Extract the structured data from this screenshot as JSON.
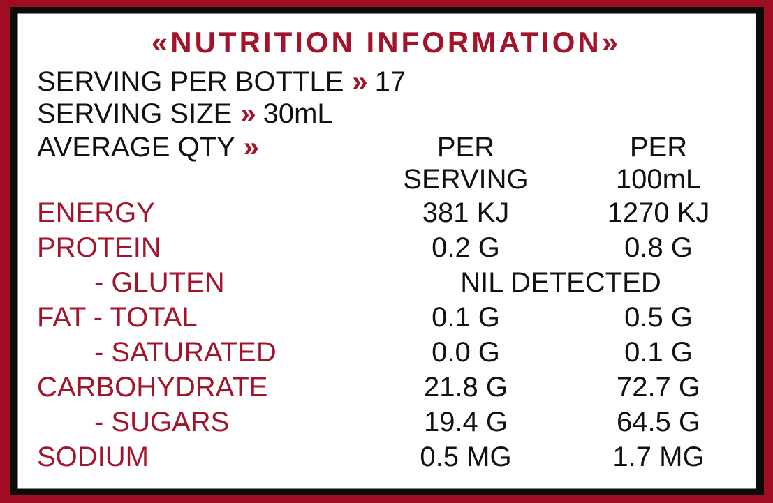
{
  "title": "«NUTRITION INFORMATION»",
  "info": [
    {
      "label": "SERVING PER BOTTLE",
      "arrow": "»",
      "value": "17"
    },
    {
      "label": "SERVING SIZE",
      "arrow": "»",
      "value": "30mL"
    },
    {
      "label": "AVERAGE QTY",
      "arrow": "»"
    }
  ],
  "columns": [
    [
      "PER",
      "SERVING"
    ],
    [
      "PER",
      "100mL"
    ]
  ],
  "rows": [
    {
      "name": "ENERGY",
      "per_serving": "381 KJ",
      "per_100ml": "1270 KJ"
    },
    {
      "name": "PROTEIN",
      "per_serving": "0.2 G",
      "per_100ml": "0.8 G"
    },
    {
      "name": "- GLUTEN",
      "both": "NIL DETECTED"
    },
    {
      "name": "FAT - TOTAL",
      "per_serving": "0.1 G",
      "per_100ml": "0.5 G"
    },
    {
      "name": "- SATURATED",
      "per_serving": "0.0 G",
      "per_100ml": "0.1 G"
    },
    {
      "name": "CARBOHYDRATE",
      "per_serving": "21.8 G",
      "per_100ml": "72.7 G"
    },
    {
      "name": "- SUGARS",
      "per_serving": "19.4 G",
      "per_100ml": "64.5 G"
    },
    {
      "name": "SODIUM",
      "per_serving": "0.5 MG",
      "per_100ml": "1.7 MG"
    }
  ]
}
